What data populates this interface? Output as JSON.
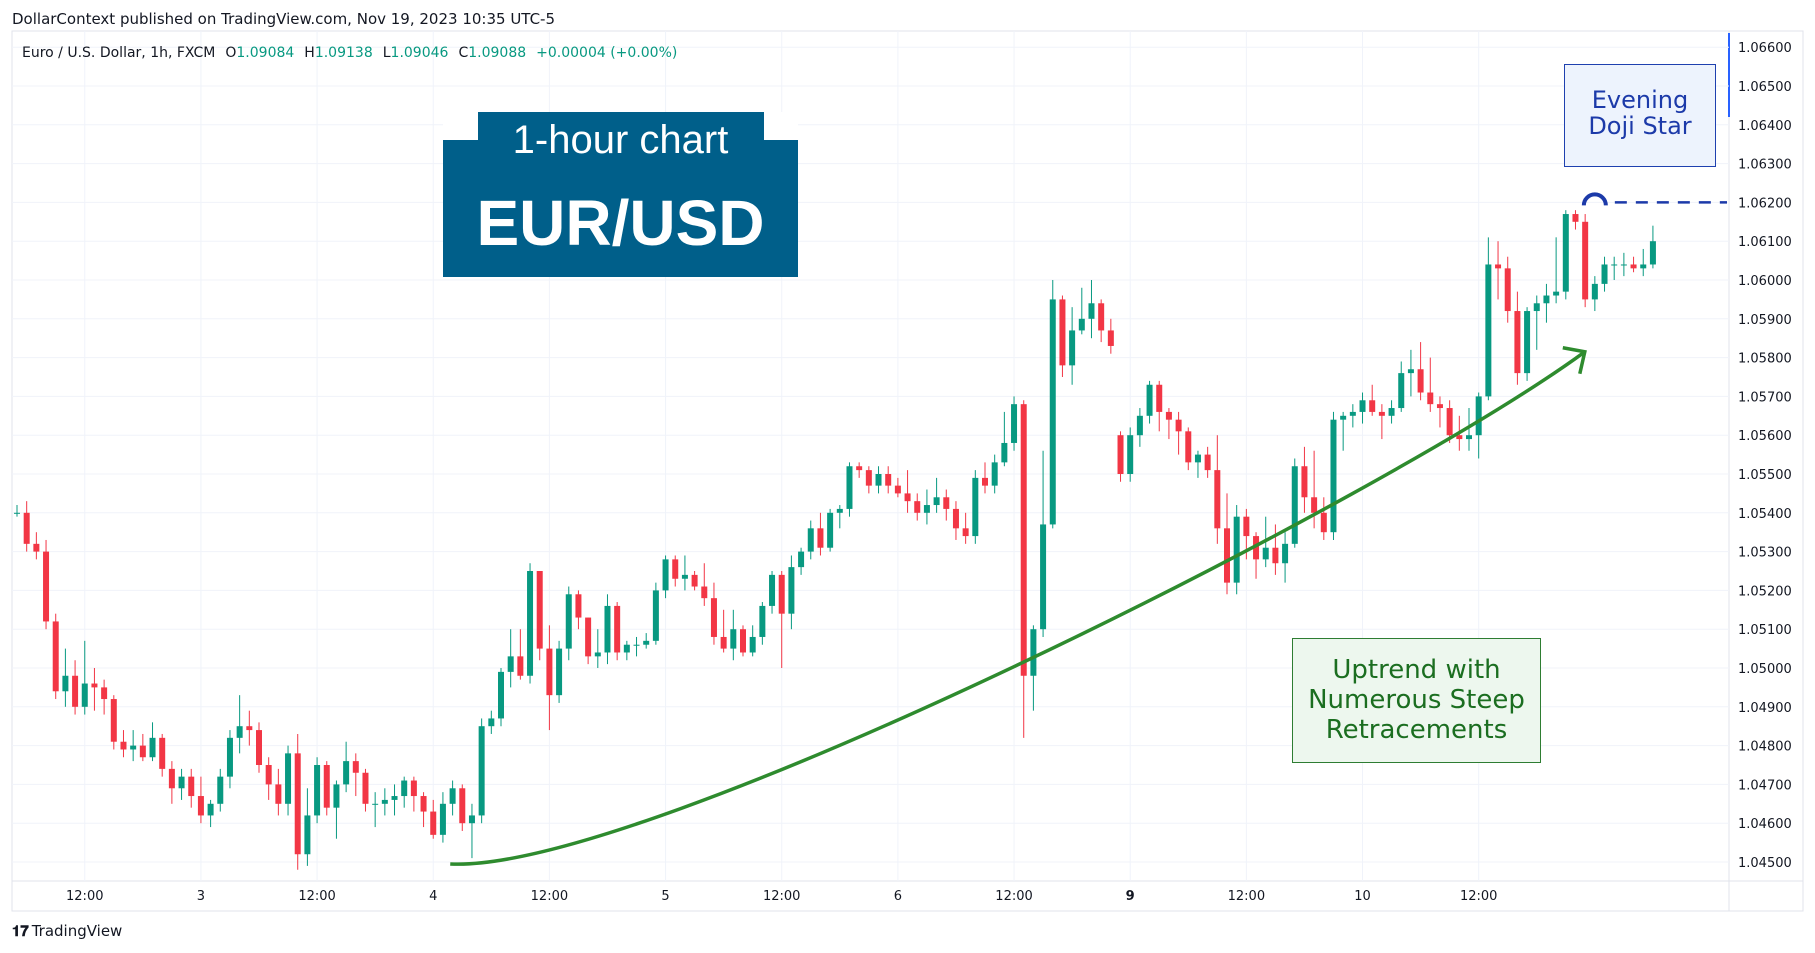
{
  "header": {
    "published_line": "DollarContext published on TradingView.com, Nov 19, 2023 10:35 UTC-5",
    "symbol": "Euro / U.S. Dollar, 1h, FXCM",
    "ohlc": {
      "o_label": "O",
      "o_value": "1.09084",
      "h_label": "H",
      "h_value": "1.09138",
      "l_label": "L",
      "l_value": "1.09046",
      "c_label": "C",
      "c_value": "1.09088",
      "change": "+0.00004 (+0.00%)"
    }
  },
  "title_box": {
    "line1": "1-hour chart",
    "line2": "EUR/USD",
    "color": "#005f8a"
  },
  "annotations": {
    "pattern_label_line1": "Evening",
    "pattern_label_line2": "Doji Star",
    "trend_label_line1": "Uptrend with",
    "trend_label_line2": "Numerous Steep",
    "trend_label_line3": "Retracements"
  },
  "footer": {
    "brand": "TradingView",
    "logo_icon": "tradingview-logo-icon"
  },
  "colors": {
    "up": "#089981",
    "down": "#f23645",
    "grid": "#f0f3fa",
    "axis_text": "#131722",
    "pattern_marker": "#1c3aa9",
    "trend_arrow": "#2e8b2e"
  },
  "chart_data": {
    "type": "candlestick",
    "y_ticks": [
      "1.06600",
      "1.06500",
      "1.06400",
      "1.06300",
      "1.06200",
      "1.06100",
      "1.06000",
      "1.05900",
      "1.05800",
      "1.05700",
      "1.05600",
      "1.05500",
      "1.05400",
      "1.05300",
      "1.05200",
      "1.05100",
      "1.05000",
      "1.04900",
      "1.04800",
      "1.04700",
      "1.04600",
      "1.04500"
    ],
    "ylim": [
      1.0447,
      1.0661
    ],
    "x_ticks": [
      {
        "label": "12:00",
        "bar": 7,
        "bold": false
      },
      {
        "label": "3",
        "bar": 19,
        "bold": false
      },
      {
        "label": "12:00",
        "bar": 31,
        "bold": false
      },
      {
        "label": "4",
        "bar": 43,
        "bold": false
      },
      {
        "label": "12:00",
        "bar": 55,
        "bold": false
      },
      {
        "label": "5",
        "bar": 67,
        "bold": false
      },
      {
        "label": "12:00",
        "bar": 79,
        "bold": false
      },
      {
        "label": "6",
        "bar": 91,
        "bold": false
      },
      {
        "label": "12:00",
        "bar": 103,
        "bold": false
      },
      {
        "label": "9",
        "bar": 115,
        "bold": true
      },
      {
        "label": "12:00",
        "bar": 127,
        "bold": false
      },
      {
        "label": "10",
        "bar": 139,
        "bold": false
      },
      {
        "label": "12:00",
        "bar": 151,
        "bold": false
      }
    ],
    "candles": [
      [
        1.054,
        1.0542,
        1.0539,
        1.054
      ],
      [
        1.054,
        1.0543,
        1.053,
        1.0532
      ],
      [
        1.0532,
        1.0535,
        1.0528,
        1.053
      ],
      [
        1.053,
        1.0533,
        1.051,
        1.0512
      ],
      [
        1.0512,
        1.0514,
        1.0492,
        1.0494
      ],
      [
        1.0494,
        1.0505,
        1.049,
        1.0498
      ],
      [
        1.0498,
        1.0502,
        1.0488,
        1.049
      ],
      [
        1.049,
        1.0507,
        1.0488,
        1.0496
      ],
      [
        1.0496,
        1.05,
        1.0489,
        1.0495
      ],
      [
        1.0495,
        1.0497,
        1.0488,
        1.0492
      ],
      [
        1.0492,
        1.0493,
        1.0479,
        1.0481
      ],
      [
        1.0481,
        1.0484,
        1.0477,
        1.0479
      ],
      [
        1.0479,
        1.0484,
        1.0476,
        1.048
      ],
      [
        1.048,
        1.0483,
        1.0476,
        1.0477
      ],
      [
        1.0477,
        1.0486,
        1.0476,
        1.0482
      ],
      [
        1.0482,
        1.0483,
        1.0472,
        1.0474
      ],
      [
        1.0474,
        1.0476,
        1.0465,
        1.0469
      ],
      [
        1.0469,
        1.0474,
        1.0466,
        1.0472
      ],
      [
        1.0472,
        1.0474,
        1.0464,
        1.0467
      ],
      [
        1.0467,
        1.0472,
        1.046,
        1.0462
      ],
      [
        1.0462,
        1.0466,
        1.0459,
        1.0465
      ],
      [
        1.0465,
        1.0474,
        1.0463,
        1.0472
      ],
      [
        1.0472,
        1.0484,
        1.0469,
        1.0482
      ],
      [
        1.0482,
        1.0493,
        1.0478,
        1.0485
      ],
      [
        1.0485,
        1.0489,
        1.048,
        1.0484
      ],
      [
        1.0484,
        1.0486,
        1.0473,
        1.0475
      ],
      [
        1.0475,
        1.0477,
        1.0466,
        1.047
      ],
      [
        1.047,
        1.0474,
        1.0462,
        1.0465
      ],
      [
        1.0465,
        1.048,
        1.0462,
        1.0478
      ],
      [
        1.0478,
        1.0483,
        1.0448,
        1.0452
      ],
      [
        1.0452,
        1.0469,
        1.0449,
        1.0462
      ],
      [
        1.0462,
        1.0477,
        1.046,
        1.0475
      ],
      [
        1.0475,
        1.0476,
        1.0462,
        1.0464
      ],
      [
        1.0464,
        1.0471,
        1.0456,
        1.047
      ],
      [
        1.047,
        1.0481,
        1.0468,
        1.0476
      ],
      [
        1.0476,
        1.0478,
        1.0467,
        1.0473
      ],
      [
        1.0473,
        1.0474,
        1.0463,
        1.0465
      ],
      [
        1.0465,
        1.0468,
        1.0459,
        1.0465
      ],
      [
        1.0465,
        1.0469,
        1.0462,
        1.0466
      ],
      [
        1.0466,
        1.047,
        1.0462,
        1.0467
      ],
      [
        1.0467,
        1.0472,
        1.0464,
        1.0471
      ],
      [
        1.0471,
        1.0472,
        1.0463,
        1.0467
      ],
      [
        1.0467,
        1.0468,
        1.0459,
        1.0463
      ],
      [
        1.0463,
        1.0466,
        1.0456,
        1.0457
      ],
      [
        1.0457,
        1.0468,
        1.0455,
        1.0465
      ],
      [
        1.0465,
        1.0471,
        1.0462,
        1.0469
      ],
      [
        1.0469,
        1.047,
        1.0458,
        1.046
      ],
      [
        1.046,
        1.0465,
        1.0451,
        1.0462
      ],
      [
        1.0462,
        1.0487,
        1.046,
        1.0485
      ],
      [
        1.0485,
        1.0489,
        1.0483,
        1.0487
      ],
      [
        1.0487,
        1.05,
        1.0485,
        1.0499
      ],
      [
        1.0499,
        1.051,
        1.0495,
        1.0503
      ],
      [
        1.0503,
        1.051,
        1.0497,
        1.0498
      ],
      [
        1.0498,
        1.0527,
        1.0496,
        1.0525
      ],
      [
        1.0525,
        1.0525,
        1.0502,
        1.0505
      ],
      [
        1.0505,
        1.0511,
        1.0484,
        1.0493
      ],
      [
        1.0493,
        1.0507,
        1.0491,
        1.0505
      ],
      [
        1.0505,
        1.0521,
        1.0502,
        1.0519
      ],
      [
        1.0519,
        1.052,
        1.051,
        1.0513
      ],
      [
        1.0513,
        1.0513,
        1.0501,
        1.0503
      ],
      [
        1.0503,
        1.051,
        1.05,
        1.0504
      ],
      [
        1.0504,
        1.0519,
        1.0501,
        1.0516
      ],
      [
        1.0516,
        1.0517,
        1.0502,
        1.0504
      ],
      [
        1.0504,
        1.0507,
        1.0502,
        1.0506
      ],
      [
        1.0506,
        1.0508,
        1.0503,
        1.0506
      ],
      [
        1.0506,
        1.0509,
        1.0505,
        1.0507
      ],
      [
        1.0507,
        1.0522,
        1.0506,
        1.052
      ],
      [
        1.052,
        1.0529,
        1.0518,
        1.0528
      ],
      [
        1.0528,
        1.0529,
        1.0521,
        1.0523
      ],
      [
        1.0523,
        1.0529,
        1.052,
        1.0524
      ],
      [
        1.0524,
        1.0525,
        1.052,
        1.0521
      ],
      [
        1.0521,
        1.0527,
        1.0516,
        1.0518
      ],
      [
        1.0518,
        1.0522,
        1.0506,
        1.0508
      ],
      [
        1.0508,
        1.0515,
        1.0504,
        1.0505
      ],
      [
        1.0505,
        1.0515,
        1.0502,
        1.051
      ],
      [
        1.051,
        1.0511,
        1.0503,
        1.0504
      ],
      [
        1.0504,
        1.0511,
        1.0503,
        1.0508
      ],
      [
        1.0508,
        1.0517,
        1.0506,
        1.0516
      ],
      [
        1.0516,
        1.0525,
        1.0514,
        1.0524
      ],
      [
        1.0524,
        1.0525,
        1.05,
        1.0514
      ],
      [
        1.0514,
        1.0529,
        1.051,
        1.0526
      ],
      [
        1.0526,
        1.0531,
        1.0524,
        1.053
      ],
      [
        1.053,
        1.0538,
        1.0528,
        1.0536
      ],
      [
        1.0536,
        1.054,
        1.0529,
        1.0531
      ],
      [
        1.0531,
        1.0541,
        1.053,
        1.054
      ],
      [
        1.054,
        1.0542,
        1.0536,
        1.0541
      ],
      [
        1.0541,
        1.0553,
        1.0539,
        1.0552
      ],
      [
        1.0552,
        1.0553,
        1.0549,
        1.0551
      ],
      [
        1.0551,
        1.0552,
        1.0545,
        1.0547
      ],
      [
        1.0547,
        1.0552,
        1.0545,
        1.055
      ],
      [
        1.055,
        1.0552,
        1.0545,
        1.0547
      ],
      [
        1.0547,
        1.0549,
        1.0544,
        1.0545
      ],
      [
        1.0545,
        1.0551,
        1.054,
        1.0543
      ],
      [
        1.0543,
        1.0545,
        1.0538,
        1.054
      ],
      [
        1.054,
        1.0546,
        1.0537,
        1.0542
      ],
      [
        1.0542,
        1.0549,
        1.054,
        1.0544
      ],
      [
        1.0544,
        1.0546,
        1.0538,
        1.0541
      ],
      [
        1.0541,
        1.0543,
        1.0533,
        1.0536
      ],
      [
        1.0536,
        1.054,
        1.0532,
        1.0534
      ],
      [
        1.0534,
        1.0551,
        1.0532,
        1.0549
      ],
      [
        1.0549,
        1.0553,
        1.0545,
        1.0547
      ],
      [
        1.0547,
        1.0555,
        1.0545,
        1.0553
      ],
      [
        1.0553,
        1.0566,
        1.0552,
        1.0558
      ],
      [
        1.0558,
        1.057,
        1.0556,
        1.0568
      ],
      [
        1.0568,
        1.0569,
        1.0482,
        1.0498
      ],
      [
        1.0498,
        1.0511,
        1.0489,
        1.051
      ],
      [
        1.051,
        1.0556,
        1.0508,
        1.0537
      ],
      [
        1.0537,
        1.06,
        1.0536,
        1.0595
      ],
      [
        1.0595,
        1.0596,
        1.0575,
        1.0578
      ],
      [
        1.0578,
        1.0593,
        1.0573,
        1.0587
      ],
      [
        1.0587,
        1.0598,
        1.0586,
        1.059
      ],
      [
        1.059,
        1.06,
        1.0585,
        1.0594
      ],
      [
        1.0594,
        1.0595,
        1.0584,
        1.0587
      ],
      [
        1.0587,
        1.059,
        1.0581,
        1.0583
      ],
      [
        1.056,
        1.0561,
        1.0548,
        1.055
      ],
      [
        1.055,
        1.0562,
        1.0548,
        1.056
      ],
      [
        1.056,
        1.0567,
        1.0557,
        1.0565
      ],
      [
        1.0565,
        1.0574,
        1.0563,
        1.0573
      ],
      [
        1.0573,
        1.0574,
        1.0561,
        1.0566
      ],
      [
        1.0566,
        1.0567,
        1.0559,
        1.0564
      ],
      [
        1.0564,
        1.0566,
        1.0555,
        1.0561
      ],
      [
        1.0561,
        1.0562,
        1.0551,
        1.0553
      ],
      [
        1.0553,
        1.0556,
        1.0549,
        1.0555
      ],
      [
        1.0555,
        1.0557,
        1.0549,
        1.0551
      ],
      [
        1.0551,
        1.056,
        1.0532,
        1.0536
      ],
      [
        1.0536,
        1.0545,
        1.0519,
        1.0522
      ],
      [
        1.0522,
        1.0542,
        1.0519,
        1.0539
      ],
      [
        1.0539,
        1.0541,
        1.0528,
        1.0534
      ],
      [
        1.0534,
        1.0535,
        1.0523,
        1.0528
      ],
      [
        1.0528,
        1.0539,
        1.0526,
        1.0531
      ],
      [
        1.0531,
        1.0537,
        1.0524,
        1.0527
      ],
      [
        1.0527,
        1.0535,
        1.0522,
        1.0532
      ],
      [
        1.0532,
        1.0554,
        1.0531,
        1.0552
      ],
      [
        1.0552,
        1.0557,
        1.054,
        1.0544
      ],
      [
        1.0544,
        1.0556,
        1.0536,
        1.054
      ],
      [
        1.054,
        1.0544,
        1.0533,
        1.0535
      ],
      [
        1.0535,
        1.0566,
        1.0533,
        1.0564
      ],
      [
        1.0564,
        1.0566,
        1.0556,
        1.0565
      ],
      [
        1.0565,
        1.0568,
        1.0562,
        1.0566
      ],
      [
        1.0566,
        1.0571,
        1.0563,
        1.0569
      ],
      [
        1.0569,
        1.0573,
        1.0565,
        1.0566
      ],
      [
        1.0566,
        1.0568,
        1.0559,
        1.0565
      ],
      [
        1.0565,
        1.0569,
        1.0563,
        1.0567
      ],
      [
        1.0567,
        1.0579,
        1.0566,
        1.0576
      ],
      [
        1.0576,
        1.0582,
        1.057,
        1.0577
      ],
      [
        1.0577,
        1.0584,
        1.0569,
        1.0571
      ],
      [
        1.0571,
        1.058,
        1.0566,
        1.0568
      ],
      [
        1.0568,
        1.057,
        1.0562,
        1.0567
      ],
      [
        1.0567,
        1.0569,
        1.0558,
        1.056
      ],
      [
        1.056,
        1.0565,
        1.0556,
        1.0559
      ],
      [
        1.0559,
        1.0567,
        1.0556,
        1.056
      ],
      [
        1.056,
        1.0571,
        1.0554,
        1.057
      ],
      [
        1.057,
        1.0611,
        1.0569,
        1.0604
      ],
      [
        1.0604,
        1.061,
        1.0595,
        1.0603
      ],
      [
        1.0603,
        1.0606,
        1.0589,
        1.0592
      ],
      [
        1.0592,
        1.0597,
        1.0573,
        1.0576
      ],
      [
        1.0576,
        1.0593,
        1.0574,
        1.0592
      ],
      [
        1.0592,
        1.0596,
        1.0582,
        1.0594
      ],
      [
        1.0594,
        1.0599,
        1.0589,
        1.0596
      ],
      [
        1.0596,
        1.0611,
        1.0594,
        1.0597
      ],
      [
        1.0597,
        1.0618,
        1.0595,
        1.0617
      ],
      [
        1.0617,
        1.0618,
        1.0613,
        1.0615
      ],
      [
        1.0615,
        1.0617,
        1.0593,
        1.0595
      ],
      [
        1.0595,
        1.0601,
        1.0592,
        1.0599
      ],
      [
        1.0599,
        1.0606,
        1.0597,
        1.0604
      ],
      [
        1.0604,
        1.0606,
        1.06,
        1.0604
      ],
      [
        1.0604,
        1.0607,
        1.0601,
        1.0604
      ],
      [
        1.0604,
        1.0606,
        1.0602,
        1.0603
      ],
      [
        1.0603,
        1.0608,
        1.0601,
        1.0604
      ],
      [
        1.0604,
        1.0614,
        1.0603,
        1.061
      ]
    ],
    "resistance_level": 1.062
  }
}
